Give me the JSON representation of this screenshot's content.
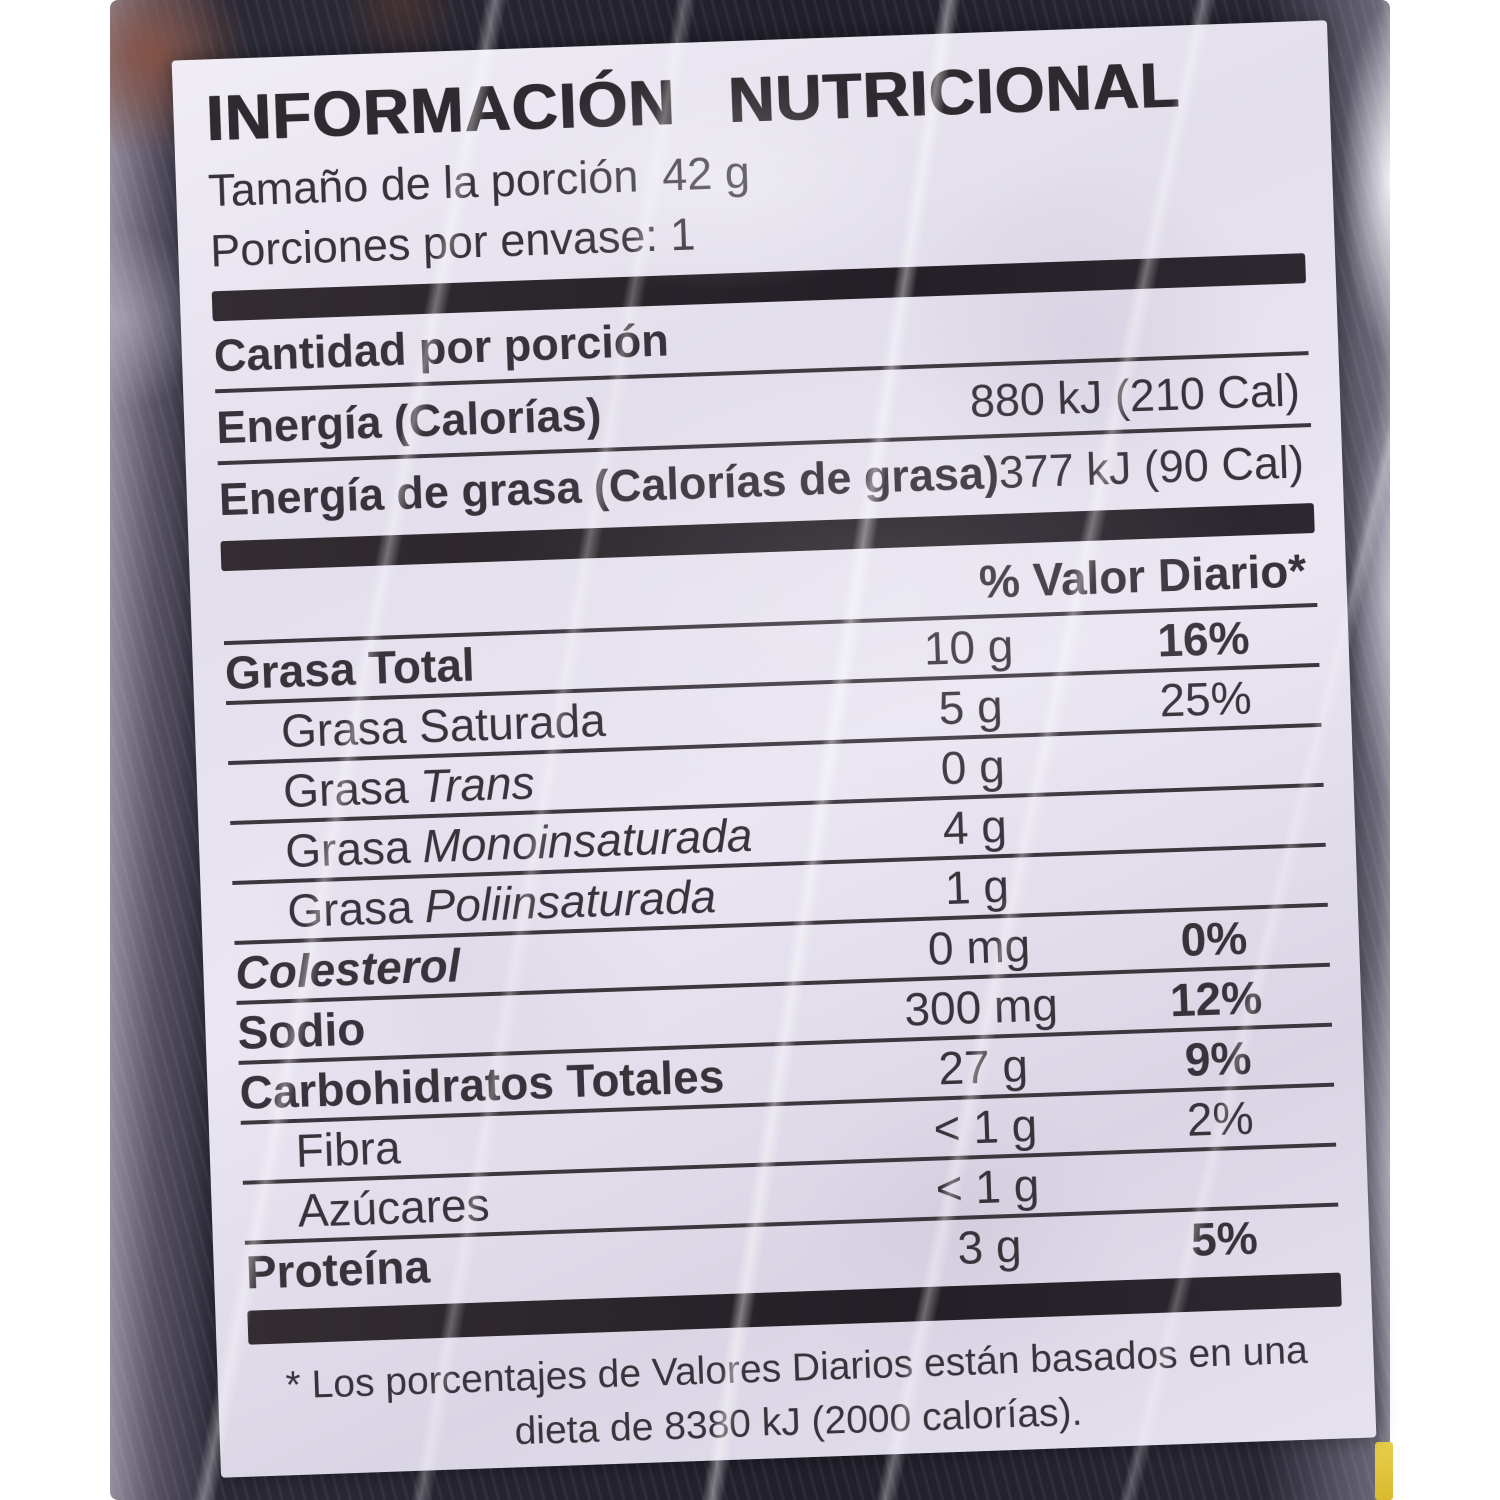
{
  "label": {
    "title": "INFORMACIÓN NUTRICIONAL",
    "serving_size_label": "Tamaño de la porción",
    "serving_size_value": "42 g",
    "servings_per_container": "Porciones por envase: 1",
    "amount_header": "Cantidad por porción",
    "energy_rows": [
      {
        "name": "Energía (Calorías)",
        "value": "880 kJ (210 Cal)"
      },
      {
        "name": "Energía de grasa (Calorías de grasa)",
        "value": "377 kJ (90 Cal)"
      }
    ],
    "daily_value_header": "% Valor Diario*",
    "nutrients": [
      {
        "name": "Grasa Total",
        "amount": "10 g",
        "dv": "16%"
      },
      {
        "name": "Grasa Saturada",
        "amount": "5 g",
        "dv": "25%"
      },
      {
        "name": "Grasa",
        "name_italic": "Trans",
        "amount": "0 g",
        "dv": ""
      },
      {
        "name": "Grasa",
        "name_italic": "Monoinsaturada",
        "amount": "4 g",
        "dv": ""
      },
      {
        "name": "Grasa",
        "name_italic": "Poliinsaturada",
        "amount": "1 g",
        "dv": ""
      },
      {
        "name": "Colesterol",
        "amount": "0 mg",
        "dv": "0%"
      },
      {
        "name": "Sodio",
        "amount": "300 mg",
        "dv": "12%"
      },
      {
        "name": "Carbohidratos Totales",
        "amount": "27 g",
        "dv": "9%"
      },
      {
        "name": "Fibra",
        "amount": "< 1 g",
        "dv": "2%"
      },
      {
        "name": "Azúcares",
        "amount": "< 1 g",
        "dv": ""
      },
      {
        "name": "Proteína",
        "amount": "3 g",
        "dv": "5%"
      }
    ],
    "footnote_line1": "* Los porcentajes de Valores Diarios están basados en una",
    "footnote_line2": "dieta de 8380 kJ (2000 calorías)."
  },
  "colors": {
    "label_background": "#e3dfec",
    "bag": "#23222c",
    "edge_accent_yellow": "#e4c43a",
    "text": "#38323a"
  }
}
